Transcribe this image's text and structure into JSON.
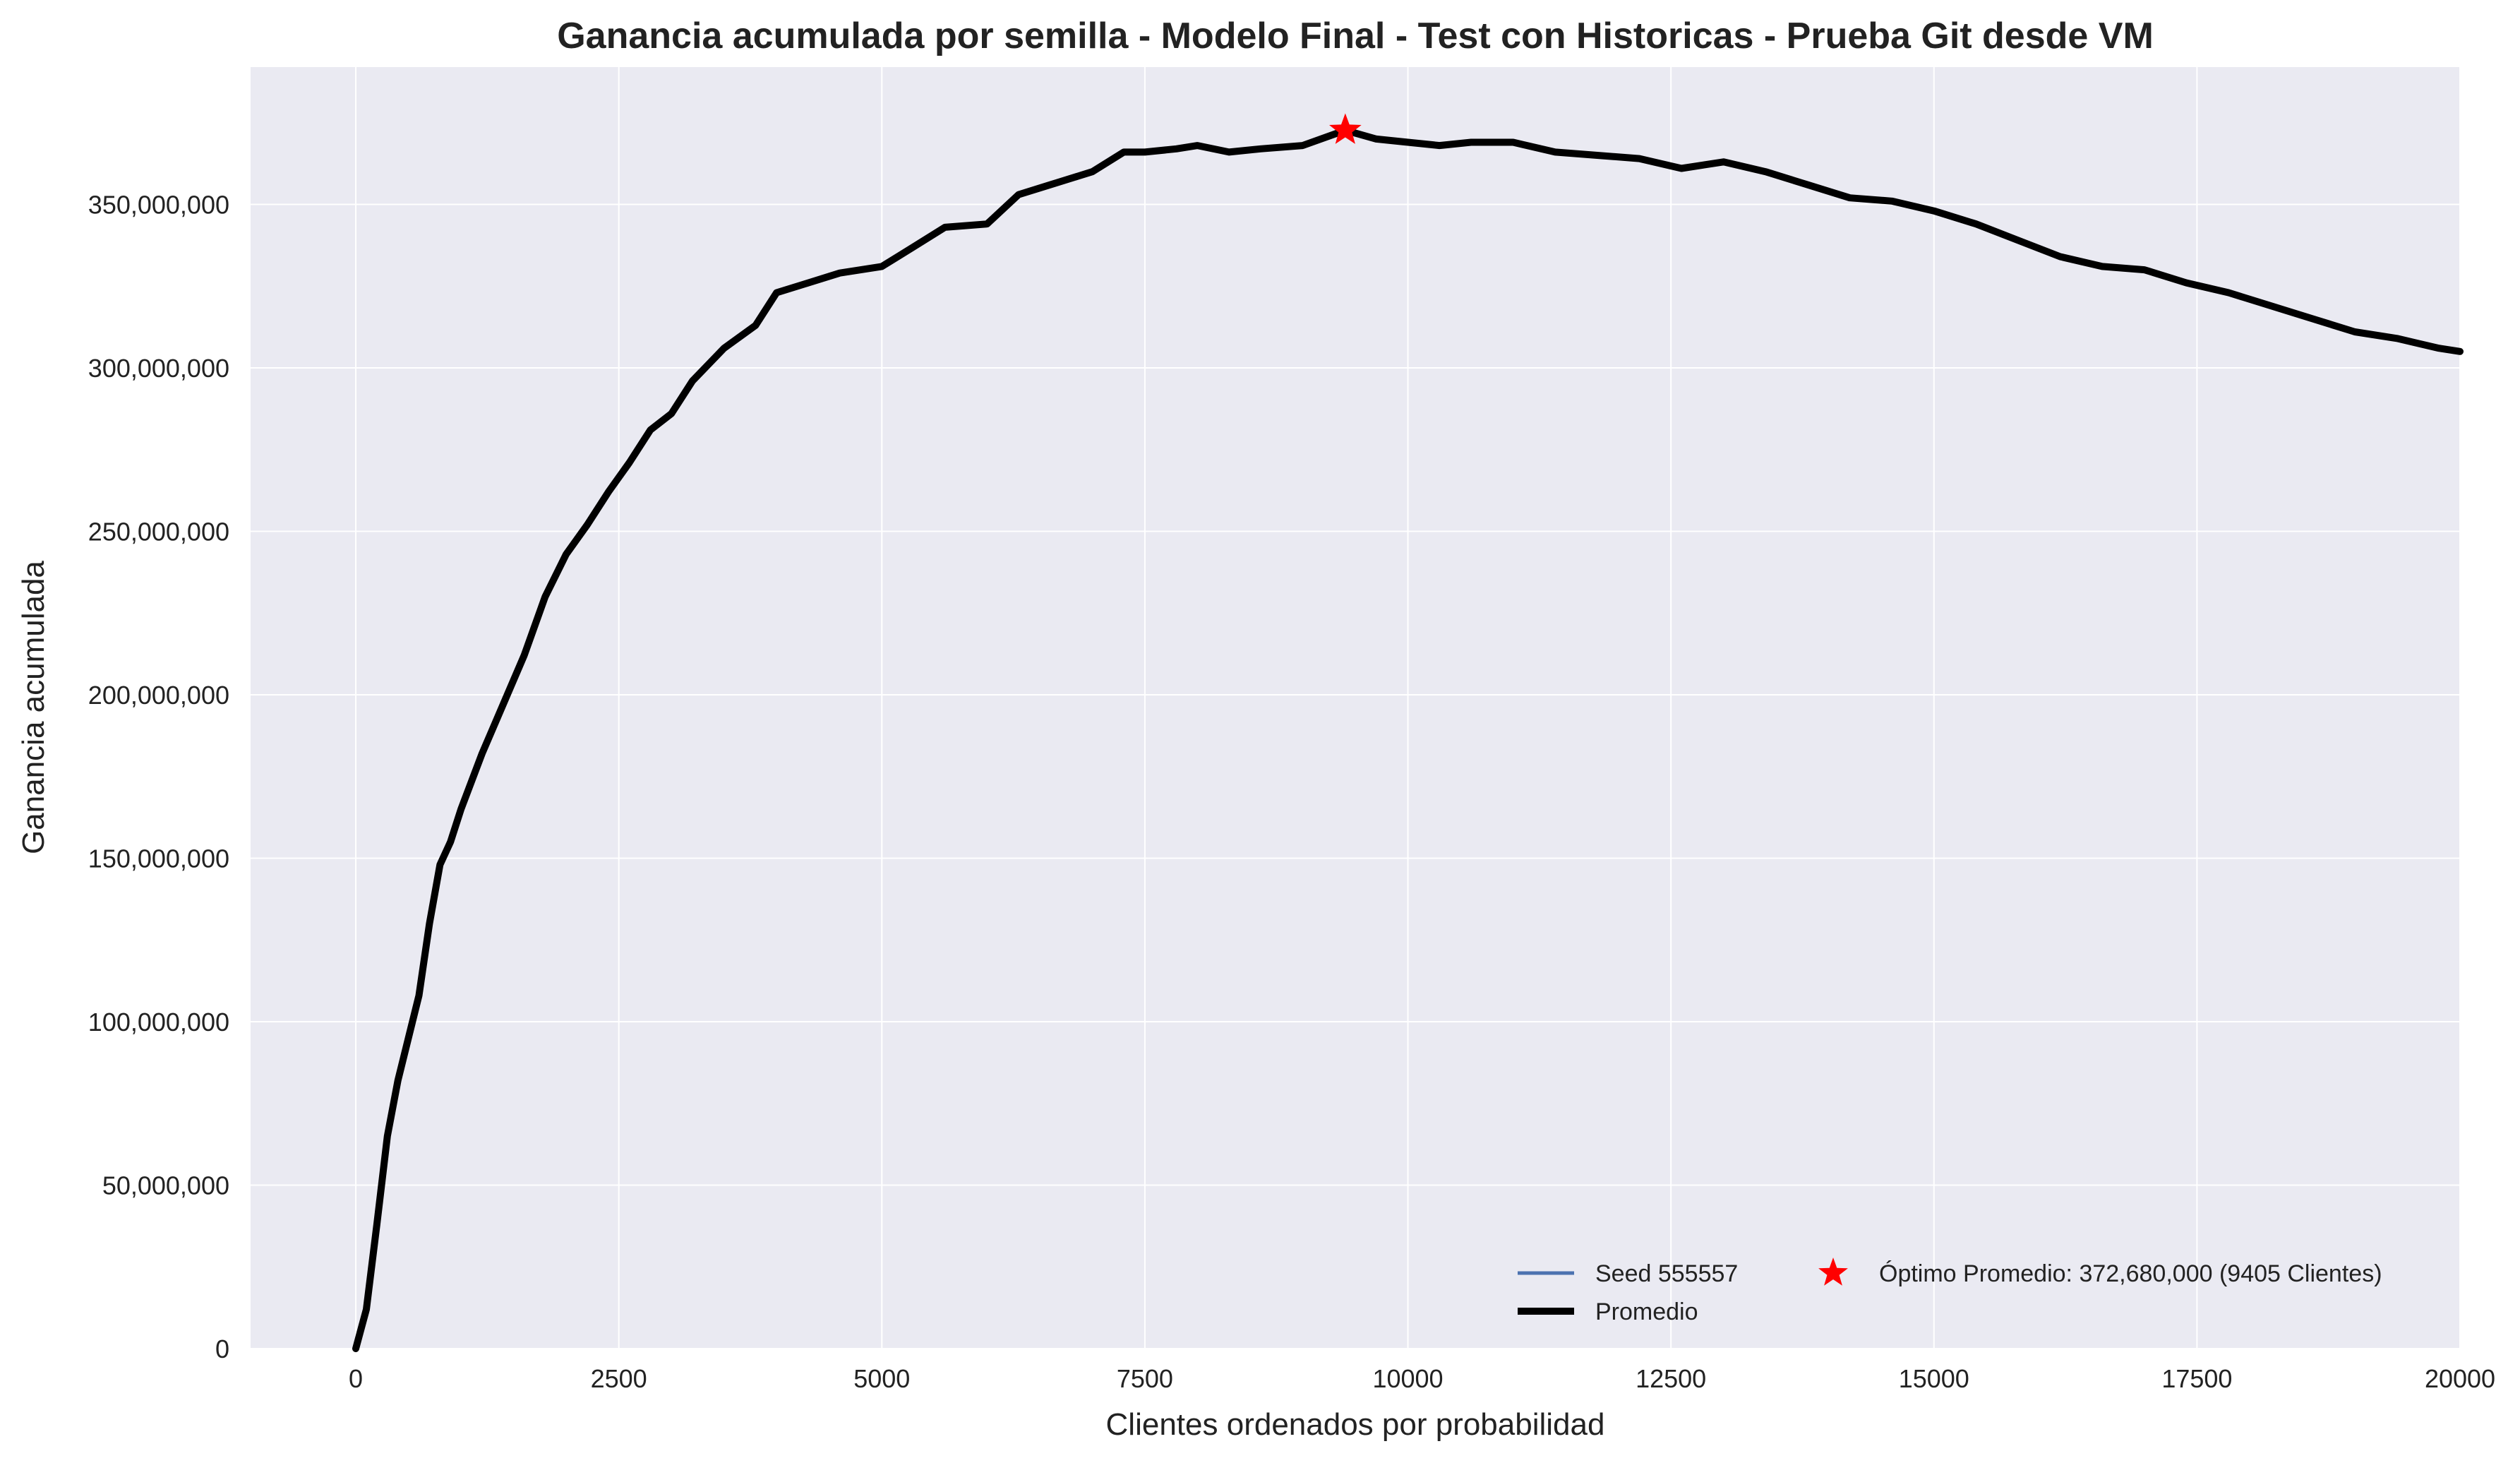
{
  "chart_data": {
    "type": "line",
    "title": "Ganancia acumulada por semilla - Modelo Final - Test con Historicas - Prueba Git desde VM",
    "xlabel": "Clientes ordenados por probabilidad",
    "ylabel": "Ganancia acumulada",
    "xlim": [
      -1000,
      20000
    ],
    "ylim": [
      0,
      392000000
    ],
    "xticks": [
      0,
      2500,
      5000,
      7500,
      10000,
      12500,
      15000,
      17500,
      20000
    ],
    "xtick_labels": [
      "0",
      "2500",
      "5000",
      "7500",
      "10000",
      "12500",
      "15000",
      "17500",
      "20000"
    ],
    "yticks": [
      0,
      50000000,
      100000000,
      150000000,
      200000000,
      250000000,
      300000000,
      350000000
    ],
    "ytick_labels": [
      "0",
      "50,000,000",
      "100,000,000",
      "150,000,000",
      "200,000,000",
      "250,000,000",
      "300,000,000",
      "350,000,000"
    ],
    "grid": true,
    "background": "#eaeaf2",
    "legend_position": "lower-right",
    "series": [
      {
        "name": "Seed 555557",
        "color": "#4c72b0",
        "x": [
          0,
          100,
          200,
          300,
          400,
          500,
          600,
          700,
          800,
          900,
          1000,
          1200,
          1400,
          1600,
          1800,
          2000,
          2200,
          2400,
          2600,
          2800,
          3000,
          3200,
          3500,
          3800,
          4000,
          4300,
          4600,
          5000,
          5300,
          5600,
          6000,
          6300,
          6600,
          7000,
          7300,
          7500,
          7800,
          8000,
          8300,
          8600,
          9000,
          9405,
          9700,
          10000,
          10300,
          10600,
          11000,
          11400,
          11800,
          12200,
          12600,
          13000,
          13400,
          13800,
          14200,
          14600,
          15000,
          15400,
          15800,
          16200,
          16600,
          17000,
          17400,
          17800,
          18200,
          18600,
          19000,
          19400,
          19800,
          20000
        ],
        "values": [
          0,
          12000000,
          38000000,
          65000000,
          82000000,
          95000000,
          108000000,
          130000000,
          148000000,
          155000000,
          165000000,
          182000000,
          197000000,
          212000000,
          230000000,
          243000000,
          252000000,
          262000000,
          271000000,
          281000000,
          286000000,
          296000000,
          306000000,
          313000000,
          323000000,
          326000000,
          329000000,
          331000000,
          337000000,
          343000000,
          344000000,
          353000000,
          356000000,
          360000000,
          366000000,
          366000000,
          367000000,
          368000000,
          366000000,
          367000000,
          368000000,
          372680000,
          370000000,
          369000000,
          368000000,
          369000000,
          369000000,
          366000000,
          365000000,
          364000000,
          361000000,
          363000000,
          360000000,
          356000000,
          352000000,
          351000000,
          348000000,
          344000000,
          339000000,
          334000000,
          331000000,
          330000000,
          326000000,
          323000000,
          319000000,
          315000000,
          311000000,
          309000000,
          306000000,
          305000000
        ]
      },
      {
        "name": "Promedio",
        "color": "#000000",
        "x": [
          0,
          100,
          200,
          300,
          400,
          500,
          600,
          700,
          800,
          900,
          1000,
          1200,
          1400,
          1600,
          1800,
          2000,
          2200,
          2400,
          2600,
          2800,
          3000,
          3200,
          3500,
          3800,
          4000,
          4300,
          4600,
          5000,
          5300,
          5600,
          6000,
          6300,
          6600,
          7000,
          7300,
          7500,
          7800,
          8000,
          8300,
          8600,
          9000,
          9405,
          9700,
          10000,
          10300,
          10600,
          11000,
          11400,
          11800,
          12200,
          12600,
          13000,
          13400,
          13800,
          14200,
          14600,
          15000,
          15400,
          15800,
          16200,
          16600,
          17000,
          17400,
          17800,
          18200,
          18600,
          19000,
          19400,
          19800,
          20000
        ],
        "values": [
          0,
          12000000,
          38000000,
          65000000,
          82000000,
          95000000,
          108000000,
          130000000,
          148000000,
          155000000,
          165000000,
          182000000,
          197000000,
          212000000,
          230000000,
          243000000,
          252000000,
          262000000,
          271000000,
          281000000,
          286000000,
          296000000,
          306000000,
          313000000,
          323000000,
          326000000,
          329000000,
          331000000,
          337000000,
          343000000,
          344000000,
          353000000,
          356000000,
          360000000,
          366000000,
          366000000,
          367000000,
          368000000,
          366000000,
          367000000,
          368000000,
          372680000,
          370000000,
          369000000,
          368000000,
          369000000,
          369000000,
          366000000,
          365000000,
          364000000,
          361000000,
          363000000,
          360000000,
          356000000,
          352000000,
          351000000,
          348000000,
          344000000,
          339000000,
          334000000,
          331000000,
          330000000,
          326000000,
          323000000,
          319000000,
          315000000,
          311000000,
          309000000,
          306000000,
          305000000
        ]
      }
    ],
    "optimum": {
      "label": "Óptimo Promedio: 372,680,000 (9405 Clientes)",
      "x": 9405,
      "y": 372680000,
      "color": "#ff0000",
      "marker": "star"
    }
  }
}
